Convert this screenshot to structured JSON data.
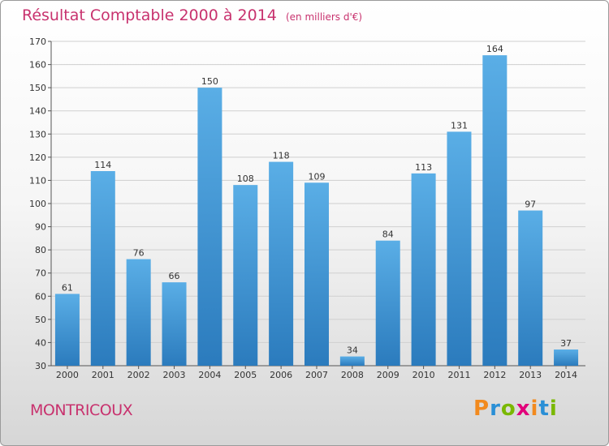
{
  "title": "Résultat Comptable 2000 à 2014",
  "unit": "(en milliers d'€)",
  "commune": "MONTRICOUX",
  "brand": {
    "letters": [
      "P",
      "r",
      "o",
      "x",
      "i",
      "t",
      "i"
    ],
    "colors": [
      "#f28a1e",
      "#2a8fd6",
      "#7ab800",
      "#e2007a",
      "#f28a1e",
      "#2a8fd6",
      "#7ab800"
    ]
  },
  "colors": {
    "title": "#c8326e",
    "bar_top": "#5aaee6",
    "bar_bottom": "#2b7bbd"
  },
  "chart_data": {
    "type": "bar",
    "categories": [
      "2000",
      "2001",
      "2002",
      "2003",
      "2004",
      "2005",
      "2006",
      "2007",
      "2008",
      "2009",
      "2010",
      "2011",
      "2012",
      "2013",
      "2014"
    ],
    "values": [
      61,
      114,
      76,
      66,
      150,
      108,
      118,
      109,
      34,
      84,
      113,
      131,
      164,
      97,
      37
    ],
    "title": "Résultat Comptable 2000 à 2014",
    "ylim": [
      30,
      170
    ],
    "yticks": [
      30,
      40,
      50,
      60,
      70,
      80,
      90,
      100,
      110,
      120,
      130,
      140,
      150,
      160,
      170
    ],
    "grid": true
  }
}
